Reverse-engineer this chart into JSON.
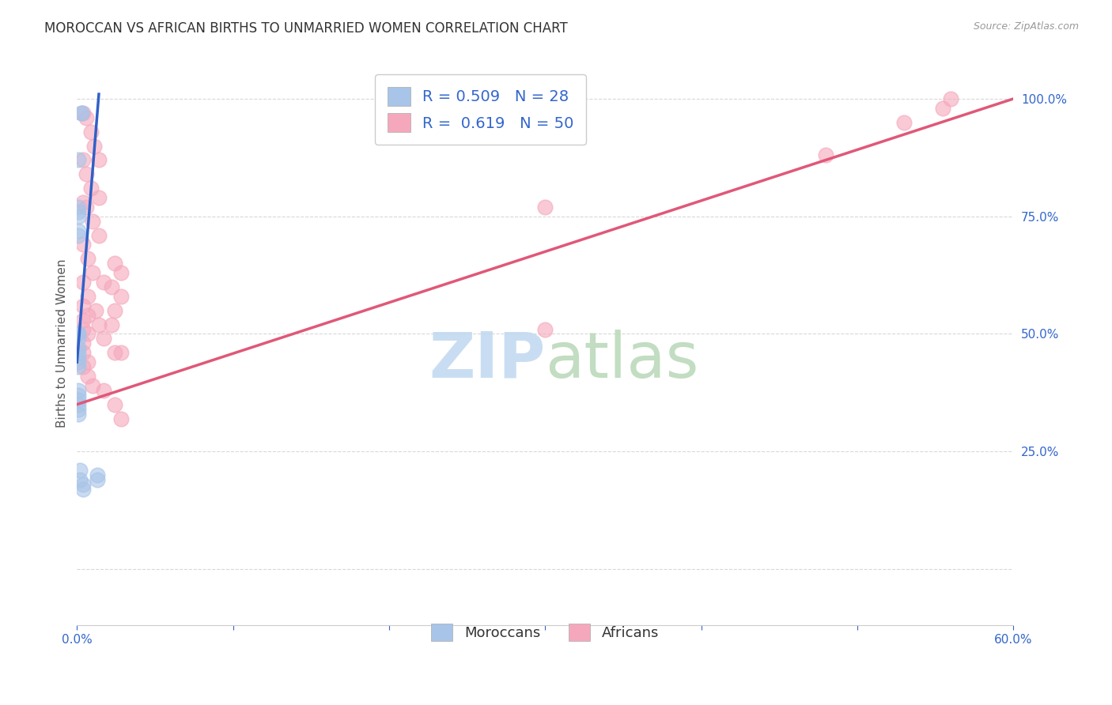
{
  "title": "MOROCCAN VS AFRICAN BIRTHS TO UNMARRIED WOMEN CORRELATION CHART",
  "source": "Source: ZipAtlas.com",
  "ylabel": "Births to Unmarried Women",
  "xlim": [
    0.0,
    0.6
  ],
  "ylim": [
    -0.12,
    1.08
  ],
  "moroccan_R": 0.509,
  "moroccan_N": 28,
  "african_R": 0.619,
  "african_N": 50,
  "moroccan_color": "#a8c4e8",
  "african_color": "#f5a8bc",
  "moroccan_line_color": "#3060c8",
  "african_line_color": "#e05878",
  "background_color": "#ffffff",
  "grid_color": "#d8d8d8",
  "watermark_zip_color": "#c8ddf0",
  "watermark_atlas_color": "#d0e8d0",
  "moroccan_x": [
    0.003,
    0.003,
    0.001,
    0.001,
    0.001,
    0.001,
    0.001,
    0.001,
    0.001,
    0.001,
    0.001,
    0.001,
    0.001,
    0.001,
    0.001,
    0.001,
    0.001,
    0.001,
    0.001,
    0.001,
    0.001,
    0.001,
    0.013,
    0.013,
    0.004,
    0.004,
    0.002,
    0.002
  ],
  "moroccan_y": [
    0.97,
    0.97,
    0.87,
    0.77,
    0.76,
    0.75,
    0.72,
    0.71,
    0.5,
    0.5,
    0.49,
    0.47,
    0.46,
    0.45,
    0.44,
    0.43,
    0.38,
    0.37,
    0.36,
    0.35,
    0.34,
    0.33,
    0.2,
    0.19,
    0.18,
    0.17,
    0.21,
    0.19
  ],
  "african_x": [
    0.004,
    0.006,
    0.009,
    0.011,
    0.014,
    0.004,
    0.006,
    0.009,
    0.014,
    0.004,
    0.006,
    0.01,
    0.014,
    0.004,
    0.007,
    0.01,
    0.017,
    0.004,
    0.007,
    0.012,
    0.004,
    0.007,
    0.024,
    0.028,
    0.004,
    0.007,
    0.022,
    0.028,
    0.004,
    0.024,
    0.004,
    0.022,
    0.3,
    0.004,
    0.028,
    0.024,
    0.007,
    0.014,
    0.017,
    0.004,
    0.007,
    0.01,
    0.017,
    0.024,
    0.028,
    0.3,
    0.48,
    0.53,
    0.555,
    0.56
  ],
  "african_y": [
    0.97,
    0.96,
    0.93,
    0.9,
    0.87,
    0.87,
    0.84,
    0.81,
    0.79,
    0.78,
    0.77,
    0.74,
    0.71,
    0.69,
    0.66,
    0.63,
    0.61,
    0.61,
    0.58,
    0.55,
    0.56,
    0.54,
    0.65,
    0.63,
    0.53,
    0.5,
    0.6,
    0.58,
    0.51,
    0.55,
    0.48,
    0.52,
    0.51,
    0.46,
    0.46,
    0.46,
    0.44,
    0.52,
    0.49,
    0.43,
    0.41,
    0.39,
    0.38,
    0.35,
    0.32,
    0.77,
    0.88,
    0.95,
    0.98,
    1.0
  ],
  "legend_moroccan_label": "Moroccans",
  "legend_african_label": "Africans",
  "title_fontsize": 12,
  "axis_label_fontsize": 11,
  "tick_fontsize": 11,
  "legend_fontsize": 14,
  "moroc_line_x0": 0.0,
  "moroc_line_x1": 0.014,
  "moroc_line_y0": 0.44,
  "moroc_line_y1": 1.01,
  "afric_line_x0": 0.0,
  "afric_line_x1": 0.6,
  "afric_line_y0": 0.35,
  "afric_line_y1": 1.0
}
